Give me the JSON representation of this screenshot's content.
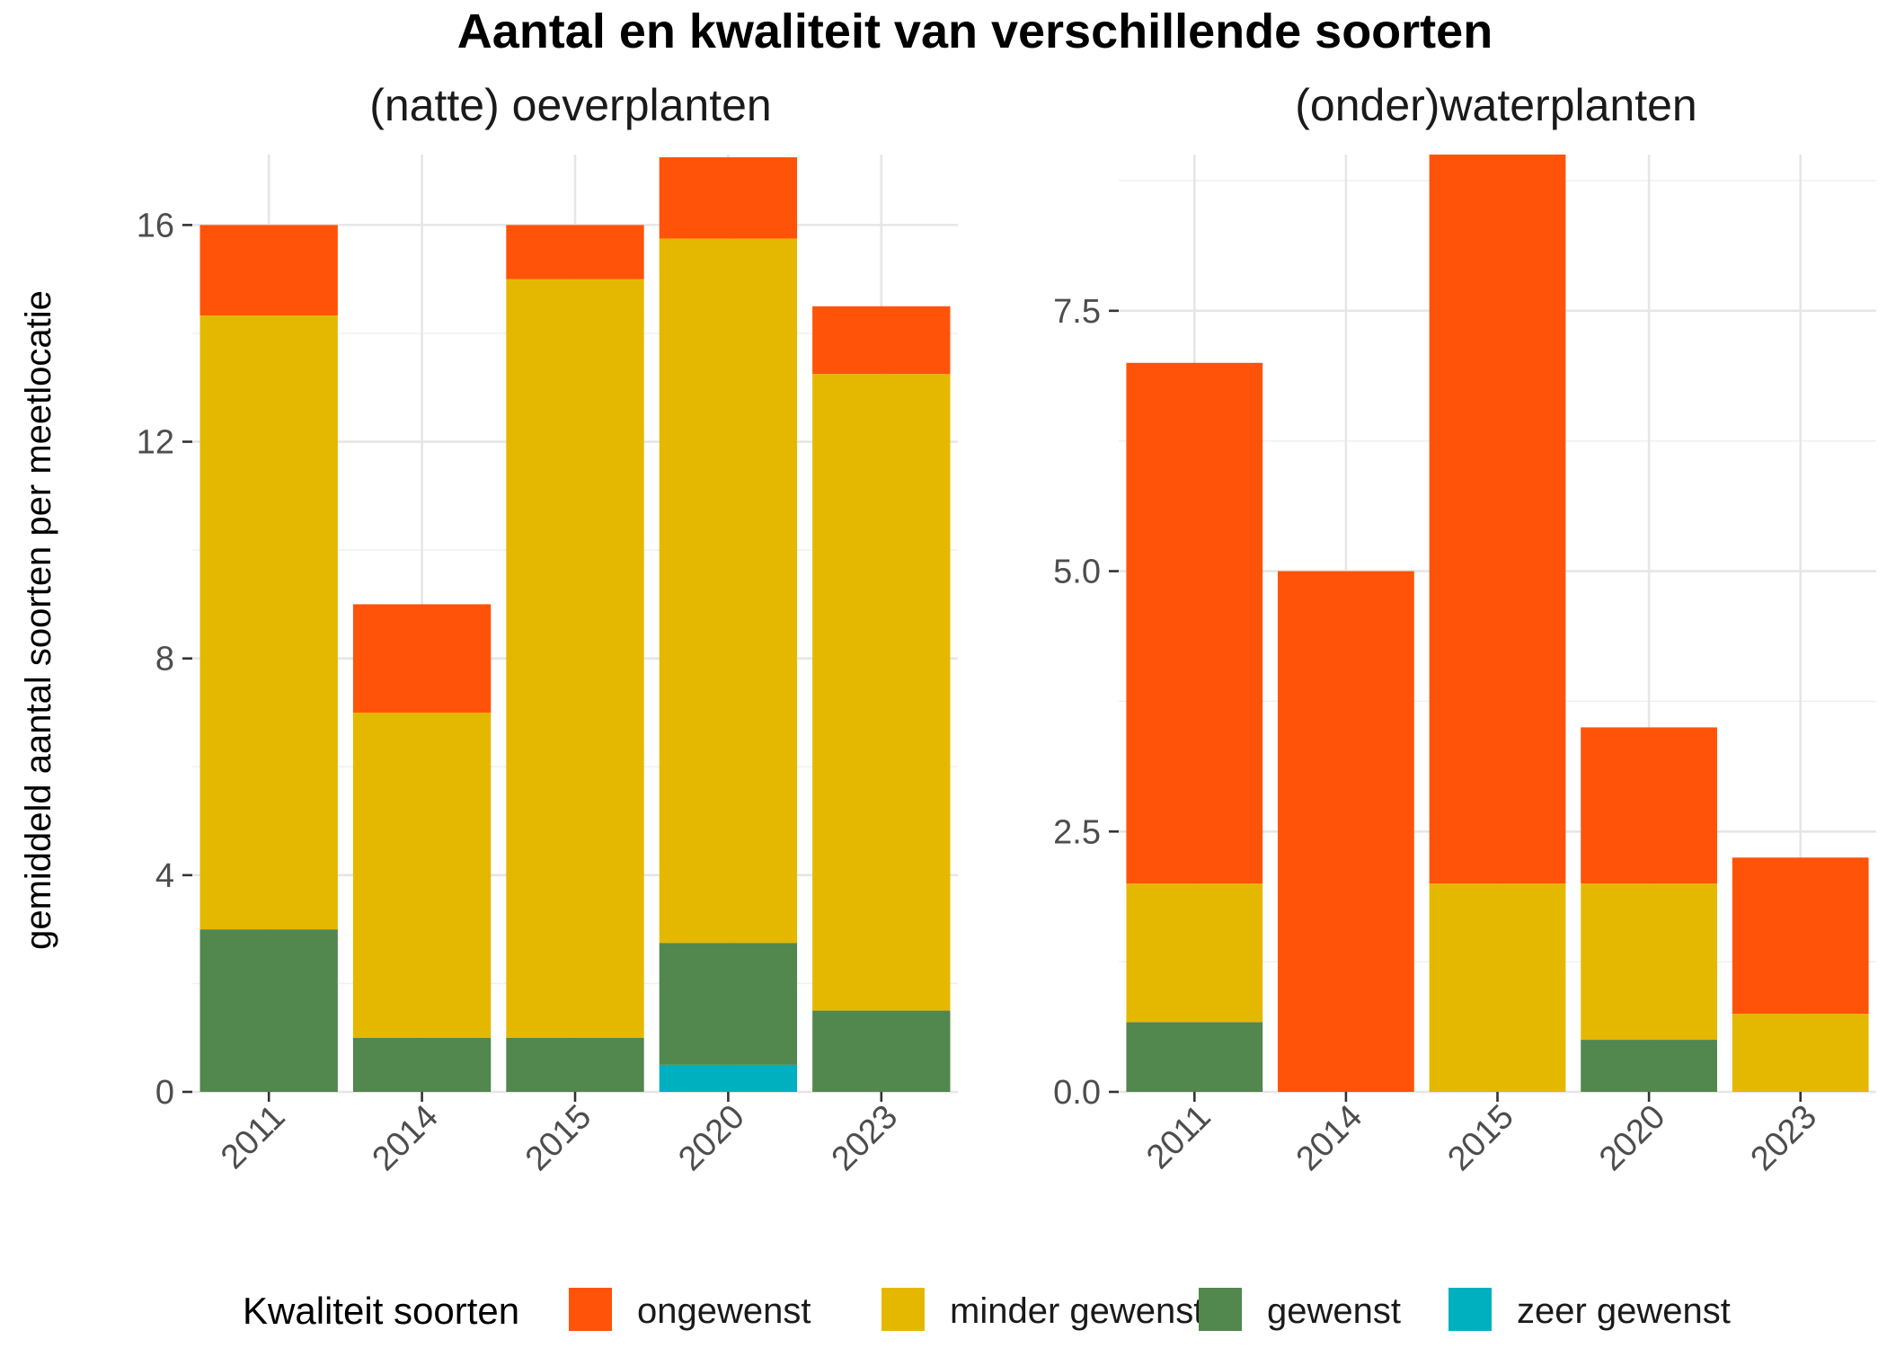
{
  "chart_data": {
    "type": "bar",
    "stacked": true,
    "title": "Aantal en kwaliteit van verschillende soorten",
    "ylabel": "gemiddeld aantal soorten per meetlocatie",
    "legend": {
      "title": "Kwaliteit soorten",
      "position": "bottom",
      "entries": [
        {
          "name": "ongewenst",
          "color": "#FF5309"
        },
        {
          "name": "minder gewenst",
          "color": "#E5B800"
        },
        {
          "name": "gewenst",
          "color": "#52874E"
        },
        {
          "name": "zeer gewenst",
          "color": "#00B0BE"
        }
      ]
    },
    "grid": true,
    "panels": [
      {
        "title": "(natte) oeverplanten",
        "categories": [
          "2011",
          "2014",
          "2015",
          "2020",
          "2023"
        ],
        "ylim": [
          0,
          17.3
        ],
        "yticks": [
          0,
          4,
          8,
          12,
          16
        ],
        "ytick_labels": [
          "0",
          "4",
          "8",
          "12",
          "16"
        ],
        "series": [
          {
            "name": "zeer gewenst",
            "values": [
              0,
              0,
              0,
              0.5,
              0
            ]
          },
          {
            "name": "gewenst",
            "values": [
              3,
              1,
              1,
              2.25,
              1.5
            ]
          },
          {
            "name": "minder gewenst",
            "values": [
              11.33,
              6,
              14,
              13,
              11.75
            ]
          },
          {
            "name": "ongewenst",
            "values": [
              1.67,
              2,
              1,
              1.5,
              1.25
            ]
          }
        ]
      },
      {
        "title": "(onder)waterplanten",
        "categories": [
          "2011",
          "2014",
          "2015",
          "2020",
          "2023"
        ],
        "ylim": [
          0,
          9
        ],
        "yticks": [
          0,
          2.5,
          5,
          7.5
        ],
        "ytick_labels": [
          "0.0",
          "2.5",
          "5.0",
          "7.5"
        ],
        "series": [
          {
            "name": "zeer gewenst",
            "values": [
              0,
              0,
              0,
              0,
              0
            ]
          },
          {
            "name": "gewenst",
            "values": [
              0.67,
              0,
              0,
              0.5,
              0
            ]
          },
          {
            "name": "minder gewenst",
            "values": [
              1.33,
              0,
              2,
              1.5,
              0.75
            ]
          },
          {
            "name": "ongewenst",
            "values": [
              5,
              5,
              7,
              1.5,
              1.5
            ]
          }
        ]
      }
    ]
  }
}
